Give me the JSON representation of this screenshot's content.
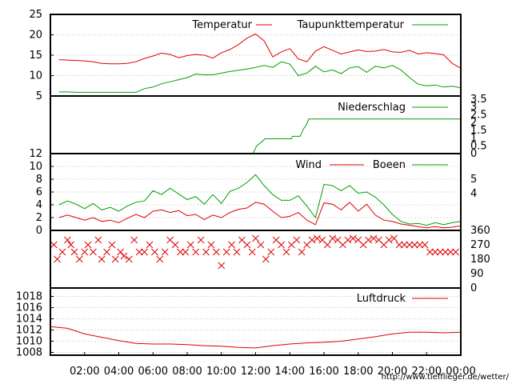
{
  "footer": {
    "url": "http://www.tiefflieger.de/wetter/"
  },
  "colors": {
    "red": "#e00000",
    "green": "#00a000",
    "grid": "#a0a0a0",
    "frame": "#000000"
  },
  "chart_data": [
    {
      "type": "line",
      "id": "temperature",
      "ylim": [
        5,
        25
      ],
      "yticks": [
        "5",
        "10",
        "15",
        "20",
        "25"
      ],
      "grid": true,
      "legend_position": "top-right",
      "x": [
        0.5,
        1,
        1.5,
        2,
        2.5,
        3,
        3.5,
        4,
        4.5,
        5,
        5.5,
        6,
        6.5,
        7,
        7.5,
        8,
        8.5,
        9,
        9.5,
        10,
        10.5,
        11,
        11.5,
        12,
        12.5,
        13,
        13.5,
        14,
        14.5,
        15,
        15.5,
        16,
        16.5,
        17,
        17.5,
        18,
        18.5,
        19,
        19.5,
        20,
        20.5,
        21,
        21.5,
        22,
        22.5,
        23,
        23.5,
        24
      ],
      "series": [
        {
          "name": "Temperatur",
          "color": "#e00000",
          "values": [
            13.9,
            13.8,
            13.7,
            13.6,
            13.4,
            13.0,
            12.9,
            12.9,
            13.0,
            13.4,
            14.2,
            14.8,
            15.5,
            15.2,
            14.4,
            14.9,
            15.2,
            15.0,
            14.3,
            15.6,
            16.4,
            17.6,
            19.2,
            20.2,
            18.5,
            14.6,
            15.8,
            16.6,
            14.1,
            13.4,
            16.0,
            17.1,
            16.2,
            15.3,
            15.8,
            16.3,
            15.9,
            16.0,
            16.4,
            15.8,
            15.7,
            16.2,
            15.3,
            15.6,
            15.4,
            15.1,
            13.0,
            11.8
          ]
        },
        {
          "name": "Taupunkttemperatur",
          "color": "#00a000",
          "values": [
            6.0,
            6.0,
            5.9,
            5.9,
            5.9,
            5.9,
            5.9,
            5.9,
            5.9,
            5.9,
            6.8,
            7.2,
            8.0,
            8.5,
            9.0,
            9.5,
            10.4,
            10.2,
            10.2,
            10.6,
            11.0,
            11.3,
            11.6,
            12.0,
            12.5,
            12.0,
            13.4,
            12.8,
            10.0,
            10.6,
            12.3,
            10.9,
            11.4,
            10.5,
            11.9,
            12.2,
            10.8,
            12.3,
            11.9,
            12.5,
            11.4,
            9.5,
            7.9,
            7.5,
            7.7,
            7.2,
            7.4,
            7.0
          ]
        }
      ]
    },
    {
      "type": "line",
      "id": "precipitation",
      "ylim": [
        0,
        3.5
      ],
      "yticks_right": [
        "0",
        "0.5",
        "1",
        "1.5",
        "2",
        "2.5",
        "3",
        "3.5"
      ],
      "legend_position": "top-right",
      "x": [
        11.85,
        12.05,
        12.45,
        12.55,
        14.1,
        14.15,
        14.6,
        14.8,
        15.0,
        15.1,
        24.0
      ],
      "series": [
        {
          "name": "Niederschlag",
          "color": "#00a000",
          "values": [
            0,
            0.45,
            0.8,
            0.9,
            0.9,
            1.05,
            1.05,
            1.5,
            1.8,
            2.1,
            2.1
          ]
        }
      ]
    },
    {
      "type": "line",
      "id": "wind",
      "ylim": [
        0,
        12
      ],
      "yticks": [
        "0",
        "2",
        "4",
        "6",
        "8",
        "10",
        "12"
      ],
      "yticks_right": [
        "4",
        "5"
      ],
      "grid": true,
      "legend_position": "top-right",
      "x": [
        0.5,
        1,
        1.5,
        2,
        2.5,
        3,
        3.5,
        4,
        4.5,
        5,
        5.5,
        6,
        6.5,
        7,
        7.5,
        8,
        8.5,
        9,
        9.5,
        10,
        10.5,
        11,
        11.5,
        12,
        12.5,
        13,
        13.5,
        14,
        14.5,
        15,
        15.5,
        16,
        16.5,
        17,
        17.5,
        18,
        18.5,
        19,
        19.5,
        20,
        20.5,
        21,
        21.5,
        22,
        22.5,
        23,
        23.5,
        24
      ],
      "series": [
        {
          "name": "Wind",
          "color": "#e00000",
          "values": [
            2.0,
            2.4,
            2.0,
            1.6,
            2.0,
            1.4,
            1.6,
            1.2,
            1.9,
            2.5,
            2.0,
            3.0,
            3.2,
            2.8,
            3.1,
            2.3,
            2.5,
            1.7,
            2.4,
            2.0,
            2.8,
            3.3,
            3.5,
            4.4,
            4.1,
            3.0,
            2.0,
            2.2,
            2.8,
            1.6,
            0.9,
            4.3,
            4.1,
            3.2,
            4.4,
            3.0,
            4.1,
            2.4,
            1.6,
            1.4,
            1.0,
            0.8,
            0.6,
            0.4,
            0.6,
            0.4,
            0.5,
            0.7
          ]
        },
        {
          "name": "Boeen",
          "color": "#00a000",
          "values": [
            4.0,
            4.6,
            4.1,
            3.4,
            4.2,
            3.2,
            3.6,
            3.0,
            3.8,
            4.4,
            4.6,
            6.2,
            5.6,
            6.6,
            5.7,
            4.8,
            5.3,
            4.1,
            5.6,
            4.2,
            6.1,
            6.6,
            7.5,
            8.7,
            7.0,
            5.6,
            4.7,
            4.7,
            5.4,
            3.8,
            2.0,
            7.2,
            7.0,
            6.2,
            7.0,
            5.8,
            6.0,
            5.2,
            4.0,
            2.5,
            1.4,
            1.0,
            1.1,
            0.8,
            1.2,
            0.9,
            1.2,
            1.4
          ]
        }
      ]
    },
    {
      "type": "scatter",
      "id": "wind_direction",
      "ylim": [
        0,
        360
      ],
      "yticks_right": [
        "0",
        "90",
        "180",
        "270",
        "360"
      ],
      "marker": "x",
      "series": [
        {
          "name": "",
          "color": "#e00000",
          "x": [
            0.2,
            0.4,
            0.7,
            1.0,
            1.2,
            1.4,
            1.7,
            2.0,
            2.2,
            2.5,
            2.8,
            3.0,
            3.3,
            3.6,
            3.8,
            4.1,
            4.3,
            4.6,
            4.9,
            5.2,
            5.5,
            5.8,
            6.1,
            6.4,
            6.7,
            7.0,
            7.3,
            7.6,
            7.9,
            8.2,
            8.5,
            8.8,
            9.1,
            9.4,
            9.7,
            10.0,
            10.3,
            10.6,
            10.9,
            11.2,
            11.5,
            11.8,
            12.0,
            12.3,
            12.6,
            12.9,
            13.2,
            13.5,
            13.8,
            14.1,
            14.4,
            14.7,
            15.0,
            15.3,
            15.6,
            15.9,
            16.2,
            16.5,
            16.8,
            17.1,
            17.4,
            17.7,
            18.0,
            18.3,
            18.6,
            18.9,
            19.2,
            19.5,
            19.8,
            20.1,
            20.4,
            20.7,
            21.0,
            21.3,
            21.6,
            21.9,
            22.2,
            22.5,
            22.8,
            23.1,
            23.4,
            23.7
          ],
          "values": [
            270,
            180,
            225,
            300,
            270,
            225,
            180,
            225,
            270,
            225,
            300,
            180,
            225,
            270,
            180,
            225,
            200,
            180,
            300,
            225,
            225,
            270,
            225,
            180,
            225,
            300,
            270,
            225,
            225,
            270,
            225,
            300,
            225,
            270,
            225,
            140,
            225,
            270,
            225,
            300,
            270,
            225,
            310,
            270,
            180,
            225,
            300,
            270,
            225,
            270,
            300,
            225,
            270,
            300,
            310,
            300,
            270,
            310,
            300,
            270,
            300,
            310,
            300,
            270,
            300,
            310,
            300,
            270,
            300,
            310,
            270,
            270,
            270,
            270,
            270,
            270,
            225,
            225,
            225,
            225,
            225,
            225
          ]
        }
      ]
    },
    {
      "type": "line",
      "id": "pressure",
      "ylim": [
        1007.5,
        1019.5
      ],
      "yticks": [
        "1008",
        "1010",
        "1012",
        "1014",
        "1016",
        "1018"
      ],
      "grid": true,
      "legend_position": "top-right",
      "x": [
        0,
        1,
        2,
        3,
        4,
        5,
        6,
        7,
        8,
        9,
        10,
        11,
        12,
        13,
        14,
        15,
        16,
        17,
        18,
        19,
        20,
        21,
        22,
        23,
        24
      ],
      "series": [
        {
          "name": "Luftdruck",
          "color": "#e00000",
          "values": [
            1012.6,
            1012.3,
            1011.3,
            1010.7,
            1010.1,
            1009.6,
            1009.5,
            1009.5,
            1009.4,
            1009.2,
            1009.1,
            1008.9,
            1008.8,
            1009.2,
            1009.5,
            1009.7,
            1009.8,
            1010.0,
            1010.4,
            1010.8,
            1011.3,
            1011.6,
            1011.6,
            1011.5,
            1011.6
          ]
        }
      ]
    }
  ],
  "x_axis": {
    "ticks": [
      2,
      4,
      6,
      8,
      10,
      12,
      14,
      16,
      18,
      20,
      22,
      24
    ],
    "labels": [
      "02:00",
      "04:00",
      "06:00",
      "08:00",
      "10:00",
      "12:00",
      "14:00",
      "16:00",
      "18:00",
      "20:00",
      "22:00",
      "00:00"
    ]
  }
}
